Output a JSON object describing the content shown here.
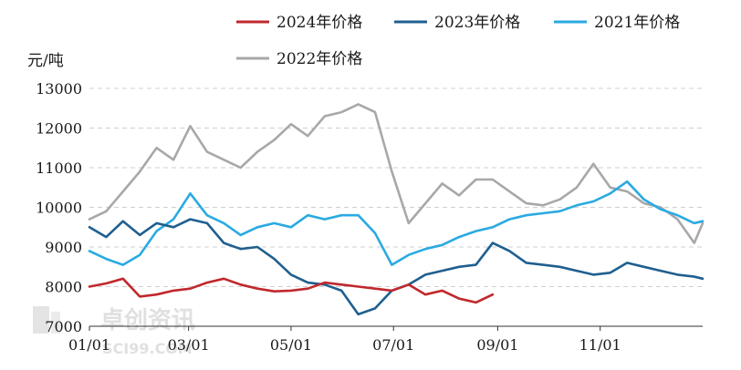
{
  "chart_data": {
    "type": "line",
    "ylabel": "元/吨",
    "ylim": [
      7000,
      13000
    ],
    "y_ticks": [
      "13000",
      "12000",
      "11000",
      "10000",
      "9000",
      "8000",
      "7000"
    ],
    "x_ticks": [
      "01/01",
      "03/01",
      "05/01",
      "07/01",
      "09/01",
      "11/01"
    ],
    "x_tick_days": [
      0,
      59,
      120,
      181,
      243,
      304
    ],
    "grid": "horizontal dashed",
    "legend_position": "top",
    "series": [
      {
        "name": "2024年价格",
        "color": "#c0282d",
        "x": [
          0,
          10,
          20,
          30,
          40,
          50,
          60,
          70,
          80,
          90,
          100,
          110,
          120,
          130,
          140,
          150,
          160,
          170,
          180,
          190,
          200,
          210,
          220,
          230,
          240
        ],
        "values": [
          8000,
          8080,
          8200,
          7750,
          7800,
          7900,
          7950,
          8100,
          8200,
          8050,
          7950,
          7880,
          7900,
          7950,
          8100,
          8050,
          8000,
          7950,
          7900,
          8050,
          7800,
          7900,
          7700,
          7600,
          7800
        ]
      },
      {
        "name": "2023年价格",
        "color": "#1f5f8f",
        "x": [
          0,
          10,
          20,
          30,
          40,
          50,
          60,
          70,
          80,
          90,
          100,
          110,
          120,
          130,
          140,
          150,
          160,
          170,
          180,
          190,
          200,
          210,
          220,
          230,
          240,
          250,
          260,
          270,
          280,
          290,
          300,
          310,
          320,
          330,
          340,
          350,
          360,
          365
        ],
        "values": [
          9500,
          9250,
          9650,
          9300,
          9600,
          9500,
          9700,
          9600,
          9100,
          8950,
          9000,
          8700,
          8300,
          8100,
          8050,
          7900,
          7300,
          7450,
          7900,
          8050,
          8300,
          8400,
          8500,
          8550,
          9100,
          8900,
          8600,
          8550,
          8500,
          8400,
          8300,
          8350,
          8600,
          8500,
          8400,
          8300,
          8250,
          8200
        ]
      },
      {
        "name": "2021年价格",
        "color": "#2aaae2",
        "x": [
          0,
          10,
          20,
          30,
          40,
          50,
          60,
          70,
          80,
          90,
          100,
          110,
          120,
          130,
          140,
          150,
          160,
          170,
          180,
          190,
          200,
          210,
          220,
          230,
          240,
          250,
          260,
          270,
          280,
          290,
          300,
          310,
          320,
          330,
          340,
          350,
          360,
          365
        ],
        "values": [
          8900,
          8700,
          8550,
          8800,
          9400,
          9700,
          10350,
          9800,
          9600,
          9300,
          9500,
          9600,
          9500,
          9800,
          9700,
          9800,
          9800,
          9350,
          8550,
          8800,
          8950,
          9050,
          9250,
          9400,
          9500,
          9700,
          9800,
          9850,
          9900,
          10050,
          10150,
          10350,
          10650,
          10200,
          9950,
          9800,
          9600,
          9650
        ]
      },
      {
        "name": "2022年价格",
        "color": "#a8a8a8",
        "x": [
          0,
          10,
          20,
          30,
          40,
          50,
          60,
          70,
          80,
          90,
          100,
          110,
          120,
          130,
          140,
          150,
          160,
          170,
          180,
          190,
          200,
          210,
          220,
          230,
          240,
          250,
          260,
          270,
          280,
          290,
          300,
          310,
          320,
          330,
          340,
          350,
          360,
          365
        ],
        "values": [
          9700,
          9900,
          10400,
          10900,
          11500,
          11200,
          12050,
          11400,
          11200,
          11000,
          11400,
          11700,
          12100,
          11800,
          12300,
          12400,
          12600,
          12400,
          10900,
          9600,
          10100,
          10600,
          10300,
          10700,
          10700,
          10400,
          10100,
          10050,
          10200,
          10500,
          11100,
          10500,
          10400,
          10100,
          10000,
          9700,
          9100,
          9600
        ]
      }
    ]
  },
  "watermark": {
    "text": "卓创资讯",
    "subtext": "SCI99.COM"
  }
}
